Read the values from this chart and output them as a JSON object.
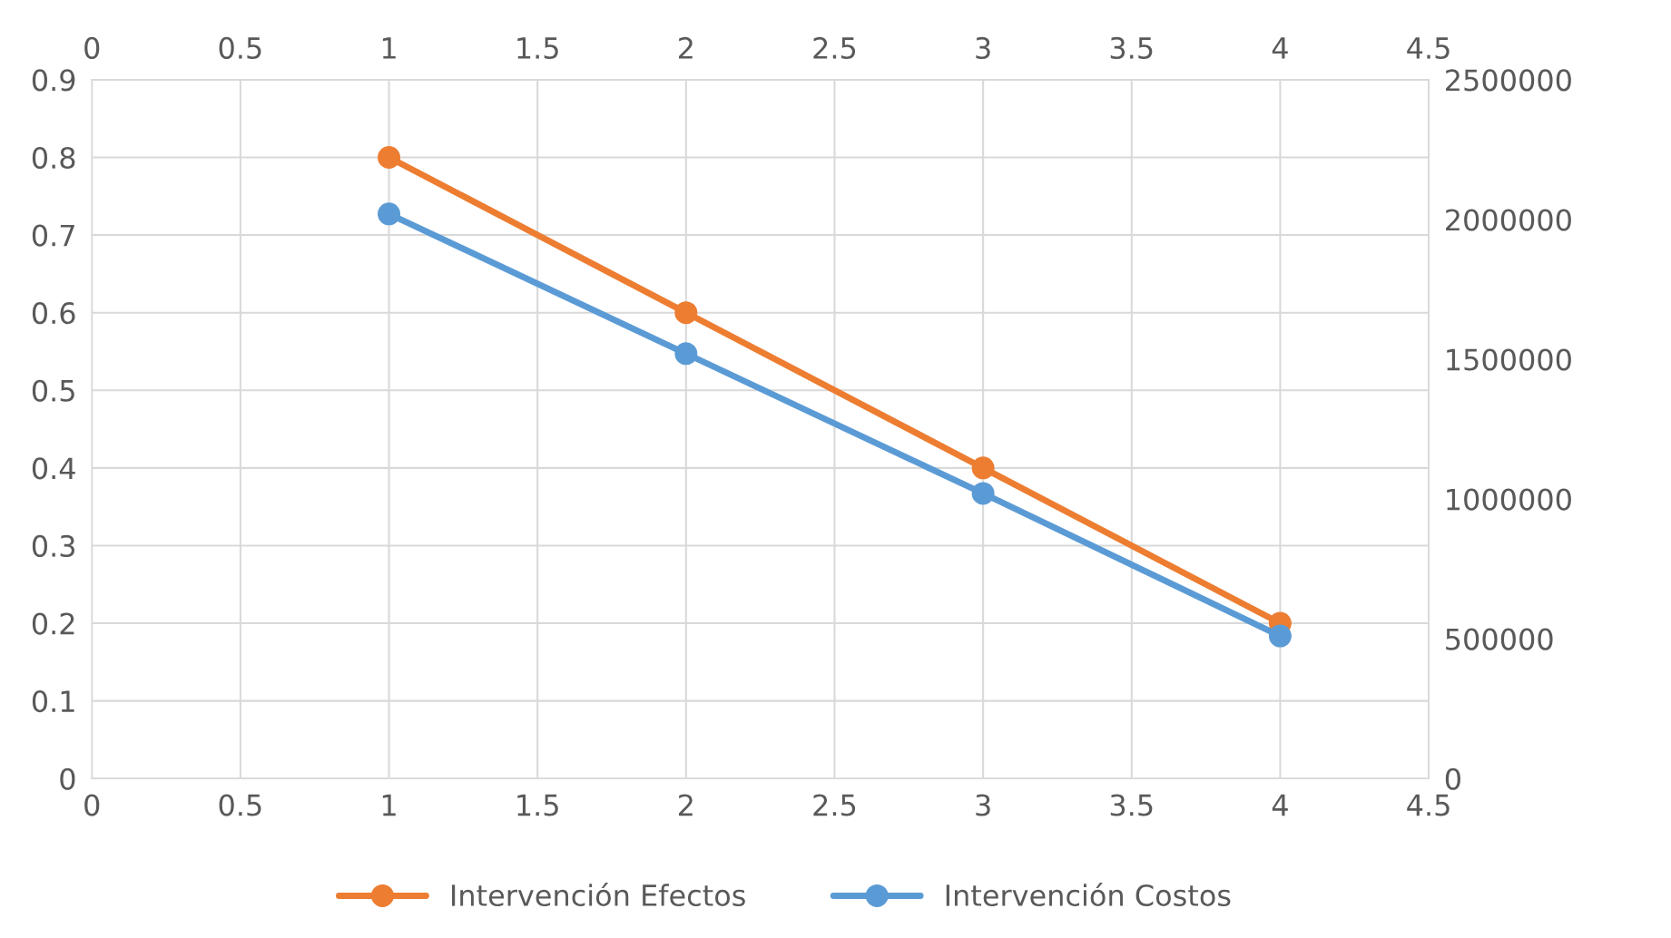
{
  "chart_data": {
    "type": "line",
    "x": [
      1,
      2,
      3,
      4
    ],
    "series": [
      {
        "name": "Intervención Efectos",
        "color": "#ed7d31",
        "values": [
          0.8,
          0.6,
          0.4,
          0.2
        ]
      },
      {
        "name": "Intervención Costos",
        "color": "#5b9bd5",
        "values": [
          2020000,
          1520000,
          1020000,
          510000
        ],
        "axis": "y2"
      }
    ],
    "xlim": [
      0,
      4.5
    ],
    "xticks": [
      0,
      0.5,
      1,
      1.5,
      2,
      2.5,
      3,
      3.5,
      4,
      4.5
    ],
    "x2lim": [
      0,
      4.5
    ],
    "x2ticks": [
      0,
      0.5,
      1,
      1.5,
      2,
      2.5,
      3,
      3.5,
      4,
      4.5
    ],
    "ylim": [
      0,
      0.9
    ],
    "yticks": [
      0,
      0.1,
      0.2,
      0.3,
      0.4,
      0.5,
      0.6,
      0.7,
      0.8,
      0.9
    ],
    "y2lim": [
      0,
      2500000
    ],
    "y2ticks": [
      0,
      500000,
      1000000,
      1500000,
      2000000,
      2500000
    ],
    "grid": true,
    "legend": "bottom",
    "marker": "circle",
    "line_style": "solid"
  }
}
